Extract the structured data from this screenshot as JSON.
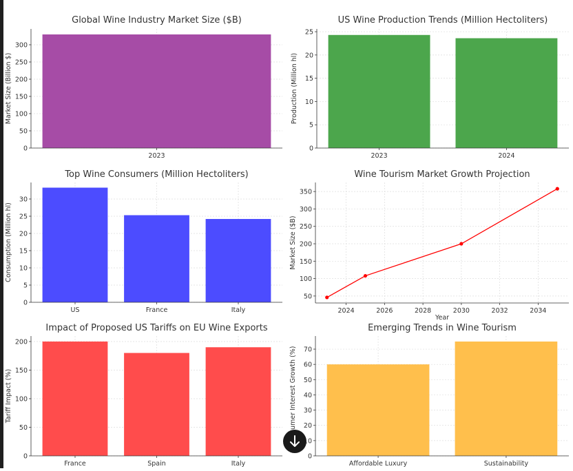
{
  "colors": {
    "purple": "#a64ca6",
    "green": "#4ca64c",
    "blue": "#4c4cff",
    "red": "#ff4c4c",
    "orange": "#ffbf4c",
    "line": "#ff0000"
  },
  "scroll_button": {
    "icon": "arrow-down-icon"
  },
  "chart_data": [
    {
      "type": "bar",
      "title": "Global Wine Industry Market Size ($B)",
      "xlabel": "",
      "ylabel": "Market Size (Billion $)",
      "categories": [
        "2023"
      ],
      "values": [
        330
      ],
      "ylim": [
        0,
        346
      ],
      "yticks": [
        0,
        50,
        100,
        150,
        200,
        250,
        300
      ],
      "color": "#a64ca6",
      "grid": true
    },
    {
      "type": "bar",
      "title": "US Wine Production Trends (Million Hectoliters)",
      "xlabel": "",
      "ylabel": "Production (Million hl)",
      "categories": [
        "2023",
        "2024"
      ],
      "values": [
        24.3,
        23.6
      ],
      "ylim": [
        0,
        25.6
      ],
      "yticks": [
        0,
        5,
        10,
        15,
        20,
        25
      ],
      "color": "#4ca64c",
      "grid": true
    },
    {
      "type": "bar",
      "title": "Top Wine Consumers (Million Hectoliters)",
      "xlabel": "",
      "ylabel": "Consumption (Million hl)",
      "categories": [
        "US",
        "France",
        "Italy"
      ],
      "values": [
        33.3,
        25.3,
        24.2
      ],
      "ylim": [
        0,
        34.8
      ],
      "yticks": [
        0,
        5,
        10,
        15,
        20,
        25,
        30
      ],
      "color": "#4c4cff",
      "grid": true
    },
    {
      "type": "line",
      "title": "Wine Tourism Market Growth Projection",
      "xlabel": "Year",
      "ylabel": "Market Size ($B)",
      "x": [
        2023,
        2025,
        2030,
        2035
      ],
      "values": [
        46,
        108,
        200,
        358
      ],
      "xlim": [
        2022.4,
        2035.6
      ],
      "ylim": [
        30,
        376
      ],
      "xticks": [
        2024,
        2026,
        2028,
        2030,
        2032,
        2034
      ],
      "yticks": [
        50,
        100,
        150,
        200,
        250,
        300,
        350
      ],
      "color": "#ff0000",
      "grid": true
    },
    {
      "type": "bar",
      "title": "Impact of Proposed US Tariffs on EU Wine Exports",
      "xlabel": "",
      "ylabel": "Tariff Impact (%)",
      "categories": [
        "France",
        "Spain",
        "Italy"
      ],
      "values": [
        200,
        180,
        190
      ],
      "ylim": [
        0,
        209.6
      ],
      "yticks": [
        0,
        50,
        100,
        150,
        200
      ],
      "color": "#ff4c4c",
      "grid": true
    },
    {
      "type": "bar",
      "title": "Emerging Trends in Wine Tourism",
      "xlabel": "",
      "ylabel": "Consumer Interest Growth (%)",
      "categories": [
        "Affordable Luxury",
        "Sustainability"
      ],
      "values": [
        60,
        75
      ],
      "ylim": [
        0,
        78.6
      ],
      "yticks": [
        0,
        10,
        20,
        30,
        40,
        50,
        60,
        70
      ],
      "color": "#ffbf4c",
      "grid": true
    }
  ]
}
